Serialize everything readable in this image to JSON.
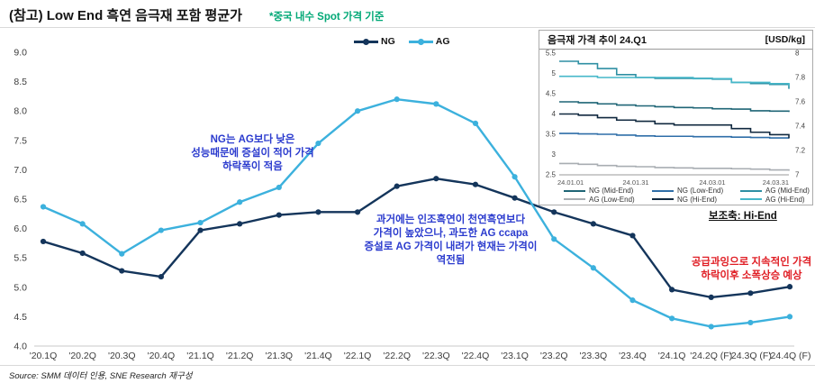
{
  "header": {
    "title": "(참고) Low End 흑연 음극재 포함 평균가",
    "note": "*중국 내수 Spot 가격 기준",
    "note_color": "#00A876"
  },
  "footer": {
    "source": "Source: SMM 데이터 인용, SNE Research 재구성"
  },
  "annotations": [
    {
      "text": "NG는 AG보다 낮은\n성능때문에 증설이 적어 가격\n하락폭이 적음",
      "color": "#2B3BCE"
    },
    {
      "text": "과거에는 인조흑연이 천연흑연보다\n가격이 높았으나, 과도한 AG ccapa\n증설로 AG 가격이 내려가 현재는 가격이\n역전됨",
      "color": "#2B3BCE"
    },
    {
      "text": "공급과잉으로 지속적인 가격\n하락이후 소폭상승 예상",
      "color": "#E01E25"
    }
  ],
  "chart_data": [
    {
      "type": "line",
      "title": "Low End 흑연 음극재 포함 평균가",
      "categories": [
        "'20.1Q",
        "'20.2Q",
        "'20.3Q",
        "'20.4Q",
        "'21.1Q",
        "'21.2Q",
        "'21.3Q",
        "'21.4Q",
        "'22.1Q",
        "'22.2Q",
        "'22.3Q",
        "'22.4Q",
        "'23.1Q",
        "'23.2Q",
        "'23.3Q",
        "'23.4Q",
        "'24.1Q",
        "'24.2Q (F)",
        "'24.3Q (F)",
        "'24.4Q (F)"
      ],
      "series": [
        {
          "name": "NG",
          "color": "#14355B",
          "values": [
            5.78,
            5.58,
            5.28,
            5.18,
            5.97,
            6.08,
            6.23,
            6.28,
            6.28,
            6.72,
            6.85,
            6.75,
            6.52,
            6.28,
            6.08,
            5.88,
            4.96,
            4.83,
            4.9,
            5.01
          ]
        },
        {
          "name": "AG",
          "color": "#3CB1DD",
          "values": [
            6.37,
            6.08,
            5.57,
            5.97,
            6.1,
            6.45,
            6.7,
            7.45,
            8.0,
            8.2,
            8.12,
            7.79,
            6.88,
            5.82,
            5.33,
            4.78,
            4.47,
            4.33,
            4.4,
            4.5
          ]
        }
      ],
      "ylim": [
        4.0,
        9.0
      ],
      "yticks": [
        4.0,
        4.5,
        5.0,
        5.5,
        6.0,
        6.5,
        7.0,
        7.5,
        8.0,
        8.5,
        9.0
      ],
      "grid": false,
      "legend_position": "top-center"
    },
    {
      "type": "line",
      "title": "음극재 가격 추이 24.Q1",
      "unit_label": "[USD/kg]",
      "secondary_axis_note": "보조축: Hi-End",
      "x_labels": [
        "24.01.01",
        "24.01.31",
        "24.03.01",
        "24.03.31"
      ],
      "ylim_left": [
        2.5,
        5.5
      ],
      "yticks_left": [
        "2.5",
        "3",
        "3.5",
        "4",
        "4.5",
        "5",
        "5.5"
      ],
      "ylim_right": [
        7,
        8
      ],
      "yticks_right": [
        "7",
        "7.2",
        "7.4",
        "7.6",
        "7.8",
        "8"
      ],
      "series": [
        {
          "name": "NG (Mid-End)",
          "axis": "left",
          "color": "#1F6576",
          "values": [
            4.3,
            4.28,
            4.25,
            4.22,
            4.2,
            4.18,
            4.16,
            4.15,
            4.13,
            4.12,
            4.08,
            4.07,
            4.05
          ]
        },
        {
          "name": "NG (Low-End)",
          "axis": "left",
          "color": "#2F6EA8",
          "values": [
            3.52,
            3.51,
            3.5,
            3.48,
            3.46,
            3.45,
            3.45,
            3.44,
            3.44,
            3.43,
            3.42,
            3.41,
            3.4
          ]
        },
        {
          "name": "AG (Mid-End)",
          "axis": "left",
          "color": "#2E8FA3",
          "values": [
            5.3,
            5.24,
            5.12,
            4.97,
            4.9,
            4.88,
            4.88,
            4.88,
            4.86,
            4.78,
            4.75,
            4.73,
            4.62
          ]
        },
        {
          "name": "AG (Low-End)",
          "axis": "left",
          "color": "#A8ADB2",
          "values": [
            2.78,
            2.76,
            2.73,
            2.71,
            2.7,
            2.68,
            2.67,
            2.66,
            2.66,
            2.65,
            2.64,
            2.62,
            2.6
          ]
        },
        {
          "name": "NG (Hi-End)",
          "axis": "right",
          "color": "#10283F",
          "values": [
            7.5,
            7.49,
            7.47,
            7.45,
            7.44,
            7.42,
            7.41,
            7.41,
            7.41,
            7.38,
            7.35,
            7.33,
            7.3
          ]
        },
        {
          "name": "AG (Hi-End)",
          "axis": "right",
          "color": "#45B7C9",
          "values": [
            7.81,
            7.81,
            7.8,
            7.8,
            7.8,
            7.8,
            7.8,
            7.79,
            7.79,
            7.76,
            7.76,
            7.75,
            7.73
          ]
        }
      ]
    }
  ]
}
